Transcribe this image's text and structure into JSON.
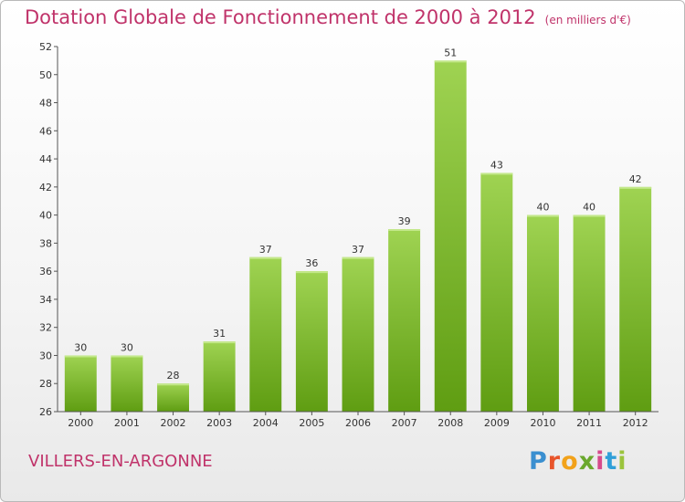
{
  "header": {
    "title": "Dotation Globale de Fonctionnement de 2000 à 2012",
    "unit": "(en milliers d'€)"
  },
  "footer": {
    "city": "VILLERS-EN-ARGONNE",
    "logo_text": "Proxiti",
    "logo_colors": [
      "#3a8fd0",
      "#e8542a",
      "#f2a21a",
      "#6aa82d",
      "#d64a8c",
      "#2f9fd9",
      "#9bc43c"
    ]
  },
  "chart_data": {
    "type": "bar",
    "categories": [
      "2000",
      "2001",
      "2002",
      "2003",
      "2004",
      "2005",
      "2006",
      "2007",
      "2008",
      "2009",
      "2010",
      "2011",
      "2012"
    ],
    "values": [
      30,
      30,
      28,
      31,
      37,
      36,
      37,
      39,
      51,
      43,
      40,
      40,
      42
    ],
    "ylim": [
      26,
      52
    ],
    "yticks": [
      26,
      28,
      30,
      32,
      34,
      36,
      38,
      40,
      42,
      44,
      46,
      48,
      50,
      52
    ],
    "grid": false,
    "data_labels": true,
    "bar_color_top": "#9fd352",
    "bar_color_bottom": "#5f9d12"
  }
}
